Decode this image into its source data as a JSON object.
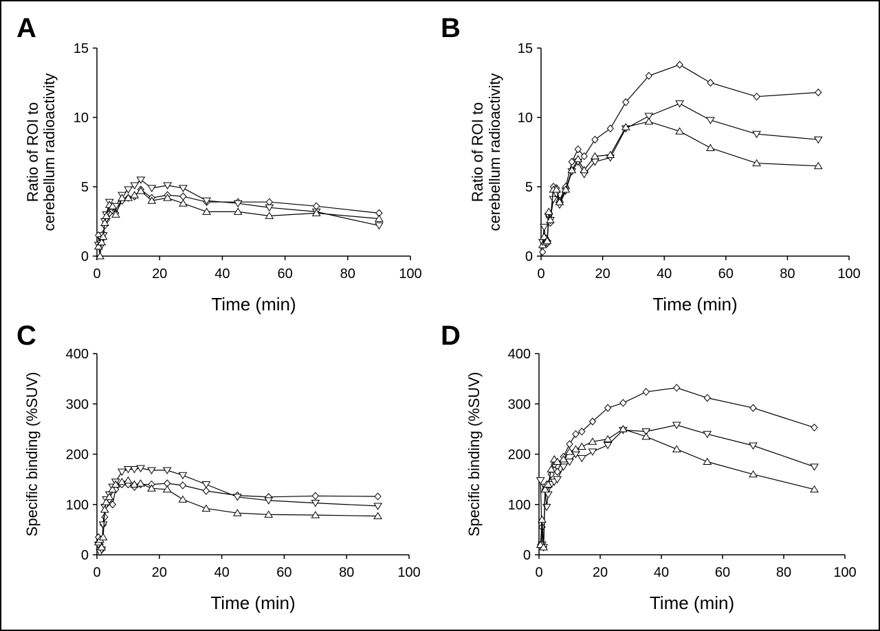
{
  "chart_data": [
    {
      "panel": "A",
      "type": "line",
      "xlabel": "Time (min)",
      "ylabel": [
        "Ratio of ROI to",
        "cerebellum radioactivity"
      ],
      "xlim": [
        0,
        100
      ],
      "ylim": [
        0,
        15
      ],
      "xticks": [
        "0",
        "20",
        "40",
        "60",
        "80",
        "100"
      ],
      "yticks": [
        "0",
        "5",
        "10",
        "15"
      ],
      "grid": false,
      "legend": "none",
      "series": [
        {
          "marker": "diamond",
          "x": [
            0.5,
            1,
            1.5,
            2,
            2.5,
            3,
            4,
            5,
            6,
            8,
            10,
            12,
            14,
            17.5,
            22.5,
            27.5,
            35,
            45,
            55,
            70,
            90
          ],
          "y": [
            1.5,
            1.0,
            1.2,
            1.6,
            2.2,
            2.6,
            3.1,
            3.3,
            3.1,
            4.0,
            4.2,
            4.3,
            4.8,
            4.2,
            4.4,
            4.3,
            3.9,
            3.9,
            3.9,
            3.6,
            3.1
          ]
        },
        {
          "marker": "triangle-down",
          "x": [
            0.5,
            1,
            1.5,
            2,
            2.5,
            3,
            4,
            5,
            6,
            8,
            10,
            12,
            14,
            17.5,
            22.5,
            27.5,
            35,
            45,
            55,
            70,
            90
          ],
          "y": [
            0.8,
            0.6,
            1.2,
            1.5,
            2.5,
            3.0,
            3.9,
            3.5,
            3.6,
            4.4,
            4.8,
            5.1,
            5.5,
            4.9,
            5.1,
            4.9,
            4.0,
            3.8,
            3.5,
            3.2,
            2.2
          ]
        },
        {
          "marker": "triangle-up",
          "x": [
            0.5,
            1,
            1.5,
            2,
            2.5,
            3,
            4,
            5,
            6,
            8,
            10,
            12,
            14,
            17.5,
            22.5,
            27.5,
            35,
            45,
            55,
            70,
            90
          ],
          "y": [
            0.7,
            0.0,
            1.0,
            1.4,
            2.4,
            2.9,
            3.7,
            3.6,
            3.0,
            4.2,
            4.2,
            4.4,
            4.7,
            4.0,
            4.2,
            3.8,
            3.2,
            3.2,
            2.9,
            3.1,
            2.7
          ]
        }
      ]
    },
    {
      "panel": "B",
      "type": "line",
      "xlabel": "Time (min)",
      "ylabel": [
        "Ratio of ROI to",
        "cerebellum radioactivity"
      ],
      "xlim": [
        0,
        100
      ],
      "ylim": [
        0,
        15
      ],
      "xticks": [
        "0",
        "20",
        "40",
        "60",
        "80",
        "100"
      ],
      "yticks": [
        "0",
        "5",
        "10",
        "15"
      ],
      "grid": false,
      "legend": "none",
      "series": [
        {
          "marker": "diamond",
          "x": [
            0.5,
            1,
            1.5,
            2,
            2.5,
            3,
            4,
            5,
            6,
            8,
            10,
            12,
            14,
            17.5,
            22.5,
            27.5,
            35,
            45,
            55,
            70,
            90
          ],
          "y": [
            0.3,
            1.0,
            1.3,
            1.1,
            2.9,
            2.4,
            5.0,
            4.9,
            4.0,
            5.0,
            6.8,
            7.7,
            7.2,
            8.4,
            9.2,
            11.1,
            13.0,
            13.8,
            12.5,
            11.5,
            11.8
          ]
        },
        {
          "marker": "triangle-down",
          "x": [
            0.5,
            1,
            1.5,
            2,
            2.5,
            3,
            4,
            5,
            6,
            8,
            10,
            12,
            14,
            17.5,
            22.5,
            27.5,
            35,
            45,
            55,
            70,
            90
          ],
          "y": [
            1.0,
            2.1,
            1.0,
            0.9,
            2.9,
            2.6,
            4.1,
            4.5,
            3.7,
            4.7,
            6.1,
            6.8,
            5.9,
            6.8,
            7.1,
            9.2,
            10.1,
            11.0,
            9.8,
            8.8,
            8.4
          ]
        },
        {
          "marker": "triangle-up",
          "x": [
            0.5,
            1,
            1.5,
            2,
            2.5,
            3,
            4,
            5,
            6,
            8,
            10,
            12,
            14,
            17.5,
            22.5,
            27.5,
            35,
            45,
            55,
            70,
            90
          ],
          "y": [
            0.8,
            1.4,
            1.0,
            1.1,
            3.2,
            2.6,
            4.8,
            4.8,
            3.9,
            4.8,
            6.2,
            7.0,
            6.2,
            7.2,
            7.3,
            9.3,
            9.7,
            9.0,
            7.8,
            6.7,
            6.5
          ]
        }
      ]
    },
    {
      "panel": "C",
      "type": "line",
      "xlabel": "Time (min)",
      "ylabel": [
        "Specific binding (%SUV)"
      ],
      "xlim": [
        0,
        100
      ],
      "ylim": [
        0,
        400
      ],
      "xticks": [
        "0",
        "20",
        "40",
        "60",
        "80",
        "100"
      ],
      "yticks": [
        "0",
        "100",
        "200",
        "300",
        "400"
      ],
      "grid": false,
      "legend": "none",
      "series": [
        {
          "marker": "diamond",
          "x": [
            0.5,
            1,
            1.5,
            2,
            2.5,
            3,
            4,
            5,
            6,
            8,
            10,
            12,
            14,
            17.5,
            22.5,
            27.5,
            35,
            45,
            55,
            70,
            90
          ],
          "y": [
            35,
            20,
            10,
            60,
            75,
            100,
            110,
            100,
            130,
            140,
            140,
            135,
            140,
            140,
            142,
            138,
            127,
            118,
            115,
            117,
            116
          ]
        },
        {
          "marker": "triangle-down",
          "x": [
            0.5,
            1,
            1.5,
            2,
            2.5,
            3,
            4,
            5,
            6,
            8,
            10,
            12,
            14,
            17.5,
            22.5,
            27.5,
            35,
            45,
            55,
            70,
            90
          ],
          "y": [
            20,
            5,
            10,
            60,
            95,
            110,
            120,
            135,
            145,
            165,
            170,
            170,
            172,
            168,
            168,
            158,
            140,
            115,
            108,
            103,
            97
          ]
        },
        {
          "marker": "triangle-up",
          "x": [
            0.5,
            1,
            1.5,
            2,
            2.5,
            3,
            4,
            5,
            6,
            8,
            10,
            12,
            14,
            17.5,
            22.5,
            27.5,
            35,
            45,
            55,
            70,
            90
          ],
          "y": [
            25,
            30,
            15,
            35,
            90,
            105,
            115,
            130,
            140,
            145,
            148,
            140,
            142,
            132,
            130,
            110,
            92,
            83,
            80,
            79,
            77
          ]
        }
      ]
    },
    {
      "panel": "D",
      "type": "line",
      "xlabel": "Time (min)",
      "ylabel": [
        "Specific binding (%SUV)"
      ],
      "xlim": [
        0,
        100
      ],
      "ylim": [
        0,
        400
      ],
      "xticks": [
        "0",
        "20",
        "40",
        "60",
        "80",
        "100"
      ],
      "yticks": [
        "0",
        "100",
        "200",
        "300",
        "400"
      ],
      "grid": false,
      "legend": "none",
      "series": [
        {
          "marker": "diamond",
          "x": [
            0.5,
            1,
            1.5,
            2,
            2.5,
            3,
            4,
            5,
            6,
            8,
            10,
            12,
            14,
            17.5,
            22.5,
            27.5,
            35,
            45,
            55,
            70,
            90
          ],
          "y": [
            20,
            55,
            15,
            130,
            135,
            140,
            160,
            180,
            165,
            195,
            220,
            240,
            245,
            265,
            292,
            302,
            324,
            332,
            312,
            292,
            253
          ]
        },
        {
          "marker": "triangle-down",
          "x": [
            0.5,
            1,
            1.5,
            2,
            2.5,
            3,
            4,
            5,
            6,
            8,
            10,
            12,
            14,
            17.5,
            22.5,
            27.5,
            35,
            45,
            55,
            70,
            90
          ],
          "y": [
            148,
            20,
            15,
            135,
            95,
            120,
            140,
            145,
            150,
            175,
            185,
            200,
            192,
            205,
            218,
            248,
            245,
            258,
            240,
            217,
            175
          ]
        },
        {
          "marker": "triangle-up",
          "x": [
            0.5,
            1,
            1.5,
            2,
            2.5,
            3,
            4,
            5,
            6,
            8,
            10,
            12,
            14,
            17.5,
            22.5,
            27.5,
            35,
            45,
            55,
            70,
            90
          ],
          "y": [
            20,
            70,
            15,
            130,
            140,
            140,
            170,
            190,
            185,
            190,
            205,
            210,
            215,
            225,
            230,
            250,
            235,
            210,
            185,
            160,
            130
          ]
        }
      ]
    }
  ]
}
